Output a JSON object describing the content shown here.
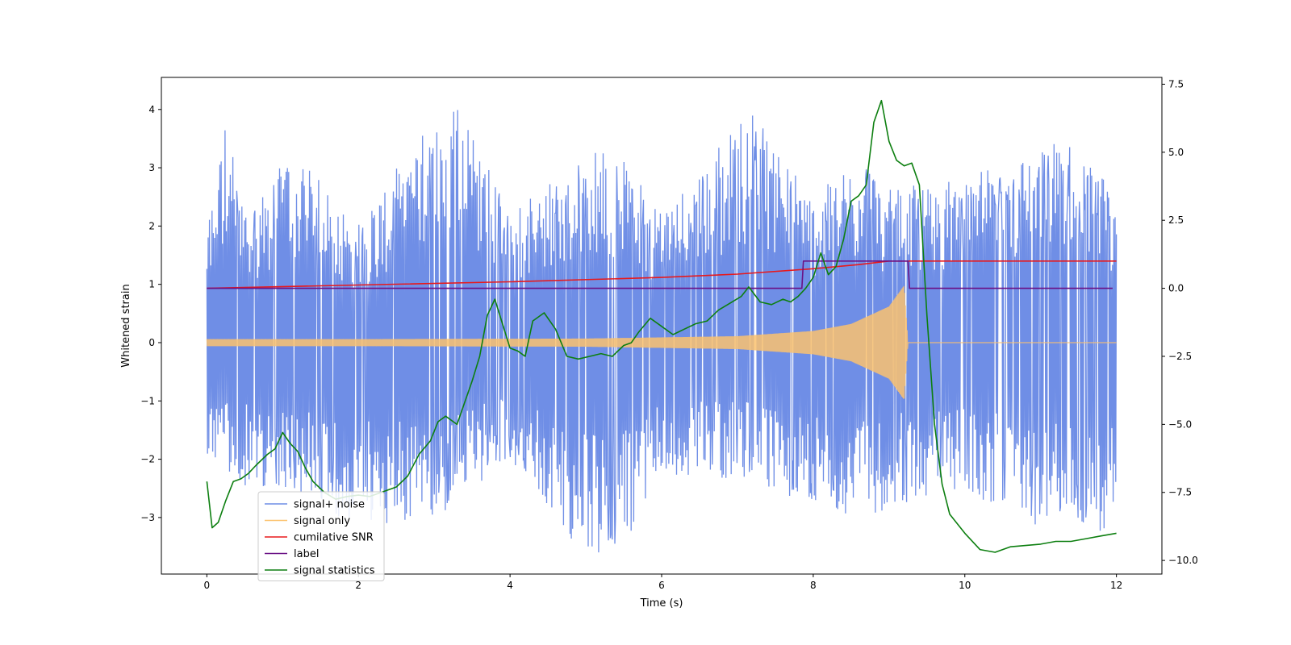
{
  "chart_data": {
    "type": "line",
    "title": "",
    "xlabel": "Time (s)",
    "ylabel": "Whitened strain",
    "xlim": [
      -0.6,
      12.6
    ],
    "ylim": [
      -3.97,
      4.55
    ],
    "y2lim": [
      -10.5,
      7.75
    ],
    "xticks": [
      0,
      2,
      4,
      6,
      8,
      10,
      12
    ],
    "xtick_labels": [
      "0",
      "2",
      "4",
      "6",
      "8",
      "10",
      "12"
    ],
    "yticks": [
      -3,
      -2,
      -1,
      0,
      1,
      2,
      3,
      4
    ],
    "ytick_labels": [
      "−3",
      "−2",
      "−1",
      "0",
      "1",
      "2",
      "3",
      "4"
    ],
    "y2ticks": [
      -10,
      -7.5,
      -5,
      -2.5,
      0,
      2.5,
      5,
      7.5
    ],
    "y2tick_labels": [
      "−10.0",
      "−7.5",
      "−5.0",
      "−2.5",
      "0.0",
      "2.5",
      "5.0",
      "7.5"
    ],
    "grid": false,
    "legend_position": "lower-left",
    "series": [
      {
        "name": "signal+ noise",
        "axis": "left",
        "color": "#6f8ee6",
        "kind": "noise",
        "x_range": [
          0,
          12
        ],
        "envelope_max": [
          [
            0,
            2.0
          ],
          [
            0.25,
            3.65
          ],
          [
            0.5,
            2.2
          ],
          [
            1.14,
            3.12
          ],
          [
            2.0,
            2.0
          ],
          [
            3.27,
            4.17
          ],
          [
            4.0,
            2.2
          ],
          [
            5.3,
            3.3
          ],
          [
            6.0,
            2.2
          ],
          [
            7.2,
            3.86
          ],
          [
            8.0,
            2.4
          ],
          [
            8.7,
            3.1
          ],
          [
            9.0,
            2.5
          ],
          [
            10.0,
            2.7
          ],
          [
            11.3,
            3.38
          ],
          [
            12.0,
            2.5
          ]
        ],
        "envelope_min": [
          [
            0,
            -1.8
          ],
          [
            0.25,
            -2.3
          ],
          [
            1.0,
            -2.4
          ],
          [
            1.7,
            -2.9
          ],
          [
            3.0,
            -3.0
          ],
          [
            4.0,
            -1.9
          ],
          [
            4.8,
            -3.4
          ],
          [
            5.33,
            -3.6
          ],
          [
            6.0,
            -2.3
          ],
          [
            7.0,
            -2.2
          ],
          [
            8.4,
            -3.0
          ],
          [
            9.0,
            -2.7
          ],
          [
            10.0,
            -2.4
          ],
          [
            10.85,
            -3.0
          ],
          [
            11.9,
            -3.1
          ],
          [
            12.0,
            -2.3
          ]
        ]
      },
      {
        "name": "signal only",
        "axis": "left",
        "color": "#fcc26e",
        "kind": "chirp",
        "x_range": [
          0,
          9.25
        ],
        "amplitude_points": [
          [
            0,
            0.06
          ],
          [
            2.0,
            0.06
          ],
          [
            5.0,
            0.07
          ],
          [
            7.0,
            0.11
          ],
          [
            8.0,
            0.2
          ],
          [
            8.5,
            0.32
          ],
          [
            9.0,
            0.62
          ],
          [
            9.2,
            0.98
          ],
          [
            9.25,
            0.0
          ]
        ],
        "after_merger_value": 0.0
      },
      {
        "name": "cumilative SNR",
        "axis": "right",
        "color": "#e8191c",
        "points": [
          [
            0,
            0.0
          ],
          [
            2,
            0.12
          ],
          [
            4,
            0.24
          ],
          [
            6,
            0.4
          ],
          [
            7,
            0.52
          ],
          [
            8,
            0.72
          ],
          [
            8.6,
            0.87
          ],
          [
            9.0,
            1.0
          ],
          [
            9.2,
            1.0
          ],
          [
            12,
            1.0
          ]
        ]
      },
      {
        "name": "label",
        "axis": "right",
        "color": "#6a1185",
        "points": [
          [
            0,
            0
          ],
          [
            7.85,
            0
          ],
          [
            7.87,
            1
          ],
          [
            9.25,
            1
          ],
          [
            9.27,
            0
          ],
          [
            11.95,
            0
          ]
        ]
      },
      {
        "name": "signal statistics",
        "axis": "right",
        "color": "#0d7f10",
        "points": [
          [
            0,
            -7.1
          ],
          [
            0.07,
            -8.8
          ],
          [
            0.15,
            -8.6
          ],
          [
            0.25,
            -7.8
          ],
          [
            0.35,
            -7.1
          ],
          [
            0.45,
            -7.0
          ],
          [
            0.55,
            -6.8
          ],
          [
            0.65,
            -6.5
          ],
          [
            0.8,
            -6.1
          ],
          [
            0.9,
            -5.9
          ],
          [
            1.0,
            -5.3
          ],
          [
            1.1,
            -5.7
          ],
          [
            1.2,
            -6.0
          ],
          [
            1.3,
            -6.6
          ],
          [
            1.4,
            -7.1
          ],
          [
            1.55,
            -7.5
          ],
          [
            1.7,
            -7.75
          ],
          [
            1.85,
            -7.65
          ],
          [
            2.0,
            -7.6
          ],
          [
            2.15,
            -7.65
          ],
          [
            2.3,
            -7.5
          ],
          [
            2.5,
            -7.3
          ],
          [
            2.65,
            -6.9
          ],
          [
            2.8,
            -6.1
          ],
          [
            2.95,
            -5.6
          ],
          [
            3.05,
            -4.9
          ],
          [
            3.15,
            -4.7
          ],
          [
            3.3,
            -5.0
          ],
          [
            3.5,
            -3.4
          ],
          [
            3.6,
            -2.5
          ],
          [
            3.7,
            -1.0
          ],
          [
            3.8,
            -0.4
          ],
          [
            3.9,
            -1.3
          ],
          [
            4.0,
            -2.2
          ],
          [
            4.1,
            -2.3
          ],
          [
            4.2,
            -2.5
          ],
          [
            4.3,
            -1.2
          ],
          [
            4.45,
            -0.9
          ],
          [
            4.6,
            -1.5
          ],
          [
            4.75,
            -2.5
          ],
          [
            4.9,
            -2.6
          ],
          [
            5.05,
            -2.5
          ],
          [
            5.2,
            -2.4
          ],
          [
            5.35,
            -2.5
          ],
          [
            5.5,
            -2.1
          ],
          [
            5.6,
            -2.0
          ],
          [
            5.7,
            -1.6
          ],
          [
            5.85,
            -1.1
          ],
          [
            6.0,
            -1.4
          ],
          [
            6.15,
            -1.7
          ],
          [
            6.3,
            -1.5
          ],
          [
            6.45,
            -1.3
          ],
          [
            6.6,
            -1.2
          ],
          [
            6.75,
            -0.8
          ],
          [
            6.9,
            -0.55
          ],
          [
            7.05,
            -0.3
          ],
          [
            7.15,
            0.05
          ],
          [
            7.3,
            -0.5
          ],
          [
            7.45,
            -0.6
          ],
          [
            7.6,
            -0.4
          ],
          [
            7.7,
            -0.5
          ],
          [
            7.8,
            -0.3
          ],
          [
            7.9,
            0.0
          ],
          [
            8.0,
            0.4
          ],
          [
            8.1,
            1.3
          ],
          [
            8.2,
            0.5
          ],
          [
            8.3,
            0.8
          ],
          [
            8.4,
            1.8
          ],
          [
            8.5,
            3.2
          ],
          [
            8.6,
            3.4
          ],
          [
            8.7,
            3.8
          ],
          [
            8.8,
            6.1
          ],
          [
            8.9,
            6.9
          ],
          [
            9.0,
            5.4
          ],
          [
            9.1,
            4.7
          ],
          [
            9.2,
            4.5
          ],
          [
            9.3,
            4.6
          ],
          [
            9.4,
            3.8
          ],
          [
            9.5,
            -1.0
          ],
          [
            9.6,
            -5.0
          ],
          [
            9.7,
            -7.2
          ],
          [
            9.8,
            -8.3
          ],
          [
            10.0,
            -9.0
          ],
          [
            10.2,
            -9.6
          ],
          [
            10.4,
            -9.7
          ],
          [
            10.6,
            -9.5
          ],
          [
            10.8,
            -9.45
          ],
          [
            11.0,
            -9.4
          ],
          [
            11.2,
            -9.3
          ],
          [
            11.4,
            -9.3
          ],
          [
            11.6,
            -9.2
          ],
          [
            11.8,
            -9.1
          ],
          [
            12.0,
            -9.0
          ]
        ]
      }
    ]
  }
}
